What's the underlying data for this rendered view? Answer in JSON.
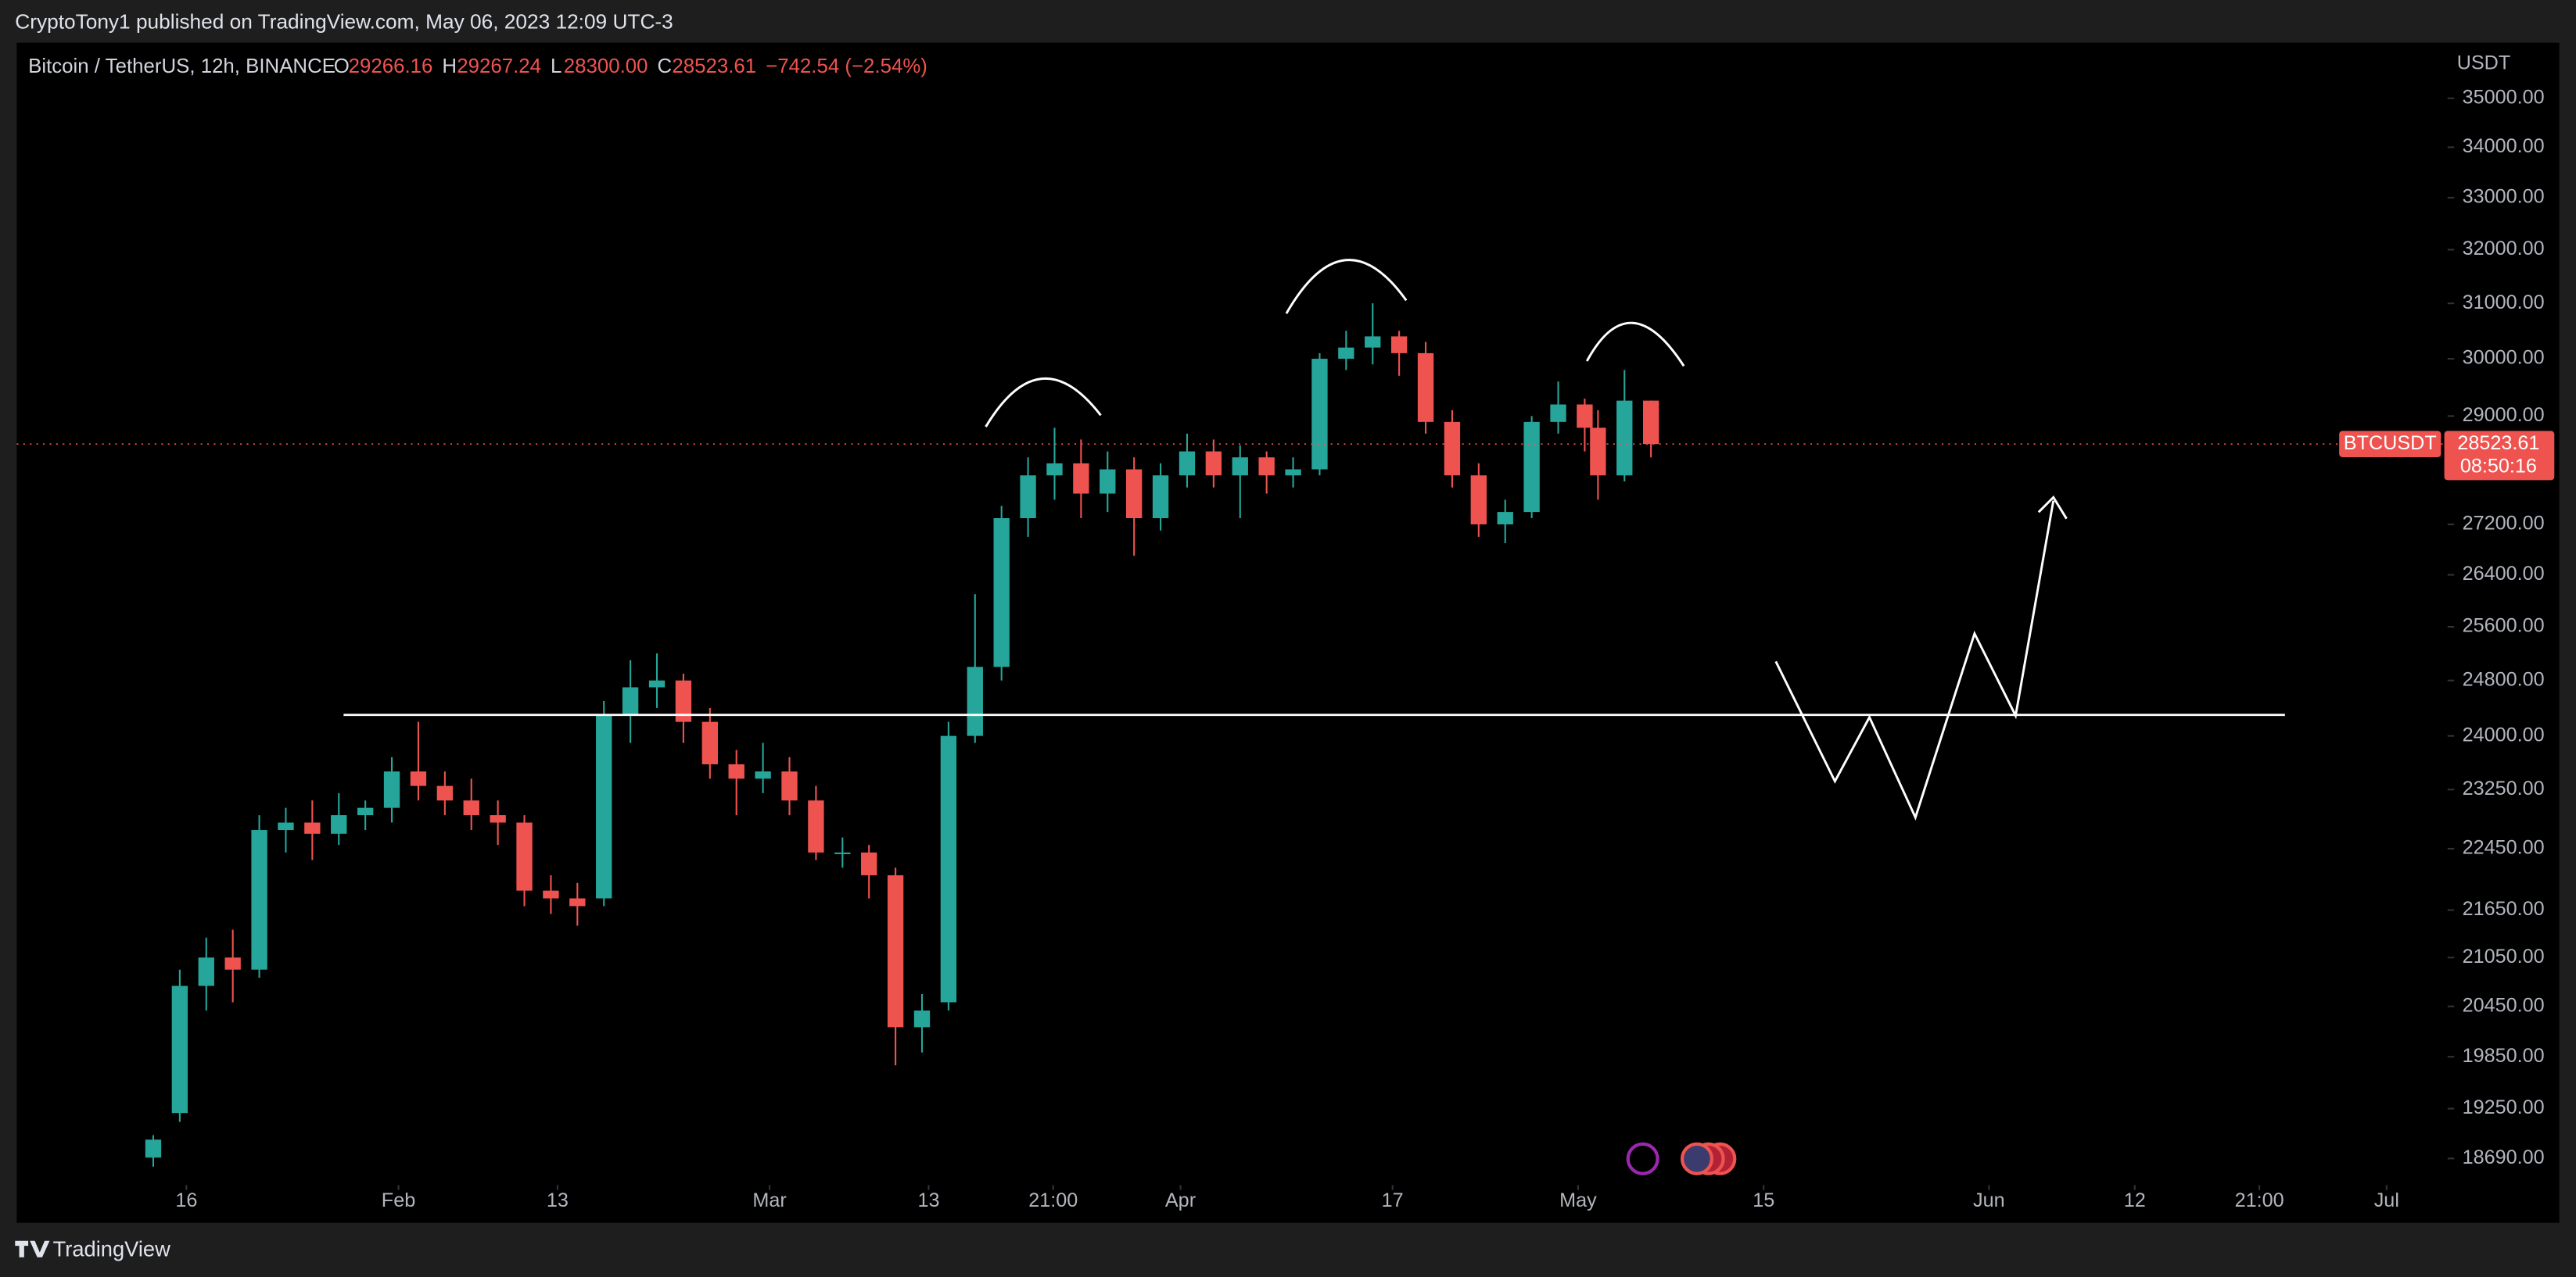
{
  "page": {
    "published": "CryptoTony1 published on TradingView.com, May 06, 2023 12:09 UTC-3",
    "brand": "TradingView"
  },
  "chart_data": {
    "type": "candlestick",
    "log": true,
    "header": {
      "symbol": "Bitcoin / TetherUS, 12h, BINANCE",
      "o": "O",
      "open": "29266.16",
      "h": "H",
      "high": "29267.24",
      "l": "L",
      "low": "28300.00",
      "c": "C",
      "close": "28523.61",
      "change": "−742.54 (−2.54%)"
    },
    "unit": "USDT",
    "up_color": "#26a69a",
    "down_color": "#ef5350",
    "candles": {
      "x": [
        12.5,
        14.5,
        16.5,
        18.5,
        20.5,
        22.5,
        24.5,
        26.5,
        28.5,
        30.5,
        32.5,
        34.5,
        36.5,
        38.5,
        40.5,
        42.5,
        44.5,
        46.5,
        48.5,
        50.5,
        52.5,
        54.5,
        56.5,
        58.5,
        60.5,
        62.5,
        64.5,
        66.5,
        68.5,
        70.5,
        72.5,
        74.5,
        76.5,
        78.5,
        80.5,
        82.5,
        84.5,
        86.5,
        88.5,
        90.5,
        92.5,
        94.5,
        96.5,
        98.5,
        100.5,
        102.5,
        104.5,
        106.5,
        108.5,
        110.5,
        112.5,
        114.5,
        116.5,
        118.5,
        120.5,
        121.5,
        123.5,
        125.5
      ],
      "open": [
        18700,
        19200,
        20700,
        21050,
        20900,
        22700,
        22800,
        22650,
        22900,
        23000,
        23500,
        23300,
        23100,
        22900,
        22800,
        21900,
        21800,
        21800,
        24300,
        24700,
        24800,
        24200,
        23600,
        23400,
        23500,
        23100,
        22400,
        22400,
        22100,
        20200,
        20500,
        24000,
        25000,
        27300,
        28000,
        28200,
        27700,
        28100,
        27300,
        28000,
        28400,
        28000,
        28300,
        28000,
        28100,
        30000,
        30200,
        30400,
        30100,
        28900,
        28000,
        27200,
        27400,
        28900,
        29200,
        28800,
        28000,
        29266.16
      ],
      "high": [
        18950,
        20900,
        21300,
        21400,
        22900,
        23000,
        23100,
        23200,
        23100,
        23700,
        24200,
        23500,
        23400,
        23100,
        22900,
        22100,
        22000,
        24500,
        25100,
        25200,
        24900,
        24400,
        23800,
        23900,
        23700,
        23300,
        22600,
        22500,
        22200,
        20600,
        24200,
        26100,
        27500,
        28300,
        28800,
        28600,
        28400,
        28300,
        28200,
        28700,
        28600,
        28500,
        28400,
        28300,
        30100,
        30500,
        31000,
        30500,
        30300,
        29100,
        28200,
        27600,
        29000,
        29600,
        29300,
        29100,
        29800,
        29267.24
      ],
      "low": [
        18600,
        19100,
        20400,
        20500,
        20800,
        22400,
        22300,
        22500,
        22700,
        22800,
        23100,
        22900,
        22700,
        22500,
        21700,
        21600,
        21450,
        21700,
        23900,
        24400,
        23900,
        23400,
        22900,
        23200,
        22900,
        22300,
        22200,
        21800,
        19750,
        19900,
        20400,
        23900,
        24800,
        27000,
        27600,
        27300,
        27400,
        26700,
        27100,
        27800,
        27800,
        27300,
        27700,
        27800,
        28000,
        29800,
        29900,
        29700,
        28700,
        27800,
        27000,
        26900,
        27300,
        28700,
        28400,
        27600,
        27900,
        28300
      ],
      "close": [
        18900,
        20700,
        21050,
        20900,
        22700,
        22800,
        22650,
        22900,
        23000,
        23500,
        23300,
        23100,
        22900,
        22800,
        21900,
        21800,
        21700,
        24300,
        24700,
        24800,
        24200,
        23600,
        23400,
        23500,
        23100,
        22400,
        22400,
        22100,
        20200,
        20400,
        24000,
        25000,
        27300,
        28000,
        28200,
        27700,
        28100,
        27300,
        28000,
        28400,
        28000,
        28300,
        28000,
        28100,
        30000,
        30200,
        30400,
        30100,
        28900,
        28000,
        27200,
        27400,
        28900,
        29200,
        28800,
        28000,
        29266.16,
        28523.61
      ]
    },
    "level": 24300,
    "last_price": {
      "symbol": "BTCUSDT",
      "value": 28523.61,
      "countdown": "08:50:16"
    },
    "xlim": [
      2.2,
      185.6
    ],
    "xticks": [
      {
        "value": 15,
        "label": "16"
      },
      {
        "value": 31,
        "label": "Feb"
      },
      {
        "value": 43,
        "label": "13"
      },
      {
        "value": 59,
        "label": "Mar"
      },
      {
        "value": 71,
        "label": "13"
      },
      {
        "value": 80.4,
        "label": "21:00"
      },
      {
        "value": 90,
        "label": "Apr"
      },
      {
        "value": 106,
        "label": "17"
      },
      {
        "value": 120,
        "label": "May"
      },
      {
        "value": 134,
        "label": "15"
      },
      {
        "value": 151,
        "label": "Jun"
      },
      {
        "value": 162,
        "label": "12"
      },
      {
        "value": 171.4,
        "label": "21:00"
      },
      {
        "value": 181,
        "label": "Jul"
      }
    ],
    "ylim": [
      18470,
      36170
    ],
    "yticks": [
      {
        "value": 35000,
        "label": "35000.00"
      },
      {
        "value": 34000,
        "label": "34000.00"
      },
      {
        "value": 33000,
        "label": "33000.00"
      },
      {
        "value": 32000,
        "label": "32000.00"
      },
      {
        "value": 31000,
        "label": "31000.00"
      },
      {
        "value": 30000,
        "label": "30000.00"
      },
      {
        "value": 29000,
        "label": "29000.00"
      },
      {
        "value": 27200,
        "label": "27200.00"
      },
      {
        "value": 26400,
        "label": "26400.00"
      },
      {
        "value": 25600,
        "label": "25600.00"
      },
      {
        "value": 24800,
        "label": "24800.00"
      },
      {
        "value": 24000,
        "label": "24000.00"
      },
      {
        "value": 23250,
        "label": "23250.00"
      },
      {
        "value": 22450,
        "label": "22450.00"
      },
      {
        "value": 21650,
        "label": "21650.00"
      },
      {
        "value": 21050,
        "label": "21050.00"
      },
      {
        "value": 20450,
        "label": "20450.00"
      },
      {
        "value": 19850,
        "label": "19850.00"
      },
      {
        "value": 19250,
        "label": "19250.00"
      },
      {
        "value": 18690,
        "label": "18690.00"
      }
    ]
  }
}
